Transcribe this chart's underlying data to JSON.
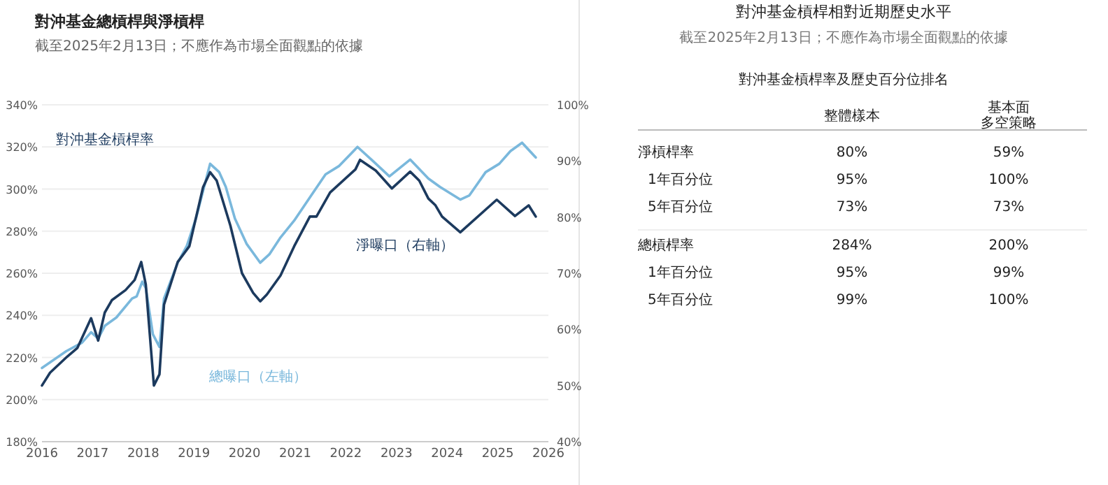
{
  "chart_data": [
    {
      "type": "line",
      "title": "對沖基金總槓桿與淨槓桿",
      "subtitle": "截至2025年2月13日；不應作為市場全面觀點的依據",
      "annotations": [
        "對沖基金槓桿率"
      ],
      "xlim": [
        2016,
        2026
      ],
      "xticks": [
        2016,
        2017,
        2018,
        2019,
        2020,
        2021,
        2022,
        2023,
        2024,
        2025,
        2026
      ],
      "ylim": [
        180,
        340
      ],
      "yticks": [
        {
          "value": 180,
          "label": "180%"
        },
        {
          "value": 200,
          "label": "200%"
        },
        {
          "value": 220,
          "label": "220%"
        },
        {
          "value": 240,
          "label": "240%"
        },
        {
          "value": 260,
          "label": "260%"
        },
        {
          "value": 280,
          "label": "280%"
        },
        {
          "value": 300,
          "label": "300%"
        },
        {
          "value": 320,
          "label": "320%"
        },
        {
          "value": 340,
          "label": "340%"
        }
      ],
      "y2lim": [
        40,
        100
      ],
      "y2ticks": [
        {
          "value": 40,
          "label": "40%"
        },
        {
          "value": 50,
          "label": "50%"
        },
        {
          "value": 60,
          "label": "60%"
        },
        {
          "value": 70,
          "label": "70%"
        },
        {
          "value": 80,
          "label": "80%"
        },
        {
          "value": 90,
          "label": "90%"
        },
        {
          "value": 100,
          "label": "100%"
        }
      ],
      "grid": "y",
      "series": [
        {
          "name": "總曝口（左軸）",
          "color": "#7ab8dc",
          "x": [
            2016.0,
            2016.48,
            2016.79,
            2016.97,
            2017.11,
            2017.24,
            2017.47,
            2017.78,
            2017.87,
            2017.98,
            2018.05,
            2018.19,
            2018.32,
            2018.41,
            2018.68,
            2018.86,
            2019.04,
            2019.18,
            2019.32,
            2019.5,
            2019.63,
            2019.81,
            2020.04,
            2020.31,
            2020.49,
            2020.71,
            2020.98,
            2021.29,
            2021.6,
            2021.87,
            2022.23,
            2022.55,
            2022.86,
            2023.27,
            2023.63,
            2023.86,
            2024.26,
            2024.44,
            2024.76,
            2025.03,
            2025.25,
            2025.48,
            2025.75
          ],
          "values": [
            215,
            223,
            227,
            232,
            229,
            235,
            239,
            248,
            249,
            256,
            253,
            231,
            225,
            248,
            265,
            273,
            286,
            299,
            312,
            308,
            301,
            286,
            274,
            265,
            269,
            277,
            285,
            296,
            307,
            311,
            320,
            313,
            306,
            314,
            305,
            301,
            295,
            297,
            308,
            312,
            318,
            322,
            315
          ]
        },
        {
          "name": "淨曝口（右軸）",
          "color": "#1c3a5e",
          "axis": "y2",
          "x": [
            2016.0,
            2016.16,
            2016.48,
            2016.7,
            2016.97,
            2017.11,
            2017.24,
            2017.38,
            2017.65,
            2017.83,
            2017.96,
            2018.05,
            2018.21,
            2018.32,
            2018.41,
            2018.68,
            2018.91,
            2019.18,
            2019.32,
            2019.45,
            2019.72,
            2019.95,
            2020.17,
            2020.31,
            2020.44,
            2020.71,
            2020.98,
            2021.29,
            2021.42,
            2021.69,
            2022.19,
            2022.28,
            2022.59,
            2022.91,
            2023.27,
            2023.45,
            2023.63,
            2023.77,
            2023.9,
            2024.26,
            2024.98,
            2025.34,
            2025.61,
            2025.75
          ],
          "values": [
            50,
            52.3,
            55,
            56.7,
            62,
            58,
            63,
            65.2,
            67,
            68.8,
            72,
            68,
            50,
            52,
            64.4,
            72,
            74.8,
            85.3,
            88,
            86.5,
            78.5,
            70,
            66.5,
            65,
            66.2,
            69.6,
            74.8,
            80.1,
            80.1,
            84.4,
            88.5,
            90.2,
            88.3,
            85.1,
            88.1,
            86.5,
            83.3,
            82.1,
            80.1,
            77.3,
            83.1,
            80.2,
            82.1,
            80.1
          ]
        }
      ]
    },
    {
      "type": "other",
      "title": "對沖基金槓桿相對近期歷史水平",
      "subtitle": "截至2025年2月13日；不應作為市場全面觀點的依據",
      "annotations": [
        "對沖基金槓桿率及歷史百分位排名"
      ],
      "categories": [
        "整體樣本",
        "基本面多空策略"
      ],
      "y_categories": [
        "淨槓桿率",
        "1年百分位",
        "5年百分位",
        "總槓桿率",
        "1年百分位",
        "5年百分位"
      ],
      "cell_labels": [
        [
          "80%",
          "59%"
        ],
        [
          "95%",
          "100%"
        ],
        [
          "73%",
          "73%"
        ],
        [
          "284%",
          "200%"
        ],
        [
          "95%",
          "99%"
        ],
        [
          "99%",
          "100%"
        ]
      ]
    }
  ]
}
